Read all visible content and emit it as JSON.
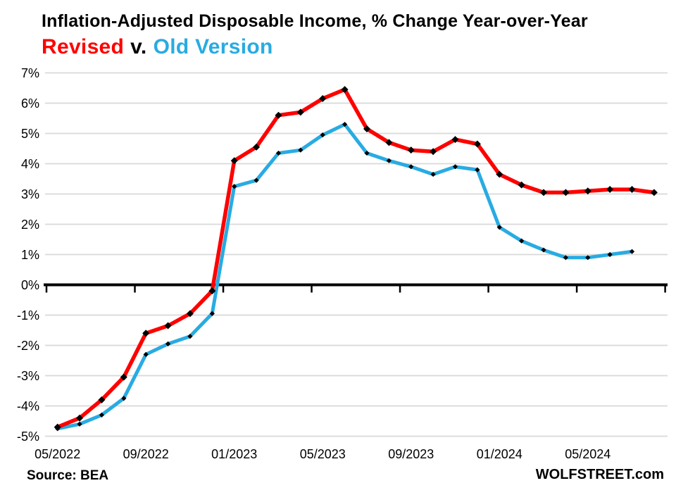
{
  "title": {
    "line1": "Inflation-Adjusted Disposable Income, % Change Year-over-Year",
    "series1_label": "Revised",
    "vs_label": "v.",
    "series2_label": "Old Version"
  },
  "footer": {
    "source": "Source: BEA",
    "site": "WOLFSTREET.com"
  },
  "colors": {
    "revised": "#FF0000",
    "old_version": "#29ABE2",
    "gridline": "#D9D9D9",
    "zero_axis": "#000000",
    "marker": "#000000",
    "text": "#000000"
  },
  "chart_data": {
    "type": "line",
    "title": "Inflation-Adjusted Disposable Income, % Change Year-over-Year",
    "subtitle": "Revised v. Old Version",
    "ylabel": "% change year-over-year",
    "ylim": [
      -5,
      7
    ],
    "ytick_step": 1,
    "ytick_suffix": "%",
    "grid": "horizontal",
    "legend_position": "title-inline",
    "categories": [
      "05/2022",
      "06/2022",
      "07/2022",
      "08/2022",
      "09/2022",
      "10/2022",
      "11/2022",
      "12/2022",
      "01/2023",
      "02/2023",
      "03/2023",
      "04/2023",
      "05/2023",
      "06/2023",
      "07/2023",
      "08/2023",
      "09/2023",
      "10/2023",
      "11/2023",
      "12/2023",
      "01/2024",
      "02/2024",
      "03/2024",
      "04/2024",
      "05/2024",
      "06/2024",
      "07/2024",
      "08/2024"
    ],
    "xtick_indices": [
      0,
      4,
      8,
      12,
      16,
      20,
      24
    ],
    "xtick_labels": [
      "05/2022",
      "09/2022",
      "01/2023",
      "05/2023",
      "09/2023",
      "01/2024",
      "05/2024"
    ],
    "series": [
      {
        "name": "Revised",
        "color": "#FF0000",
        "marker": "diamond",
        "values": [
          -4.7,
          -4.4,
          -3.8,
          -3.05,
          -1.6,
          -1.35,
          -0.95,
          -0.2,
          4.1,
          4.55,
          5.6,
          5.7,
          6.15,
          6.45,
          5.15,
          4.7,
          4.45,
          4.4,
          4.8,
          4.65,
          3.65,
          3.3,
          3.05,
          3.05,
          3.1,
          3.15,
          3.15,
          3.05
        ]
      },
      {
        "name": "Old Version",
        "color": "#29ABE2",
        "marker": "diamond",
        "values": [
          -4.75,
          -4.6,
          -4.3,
          -3.75,
          -2.3,
          -1.95,
          -1.7,
          -0.95,
          3.25,
          3.45,
          4.35,
          4.45,
          4.95,
          5.3,
          4.35,
          4.1,
          3.9,
          3.65,
          3.9,
          3.8,
          1.9,
          1.45,
          1.15,
          0.9,
          0.9,
          1.0,
          1.1,
          null
        ]
      }
    ]
  }
}
